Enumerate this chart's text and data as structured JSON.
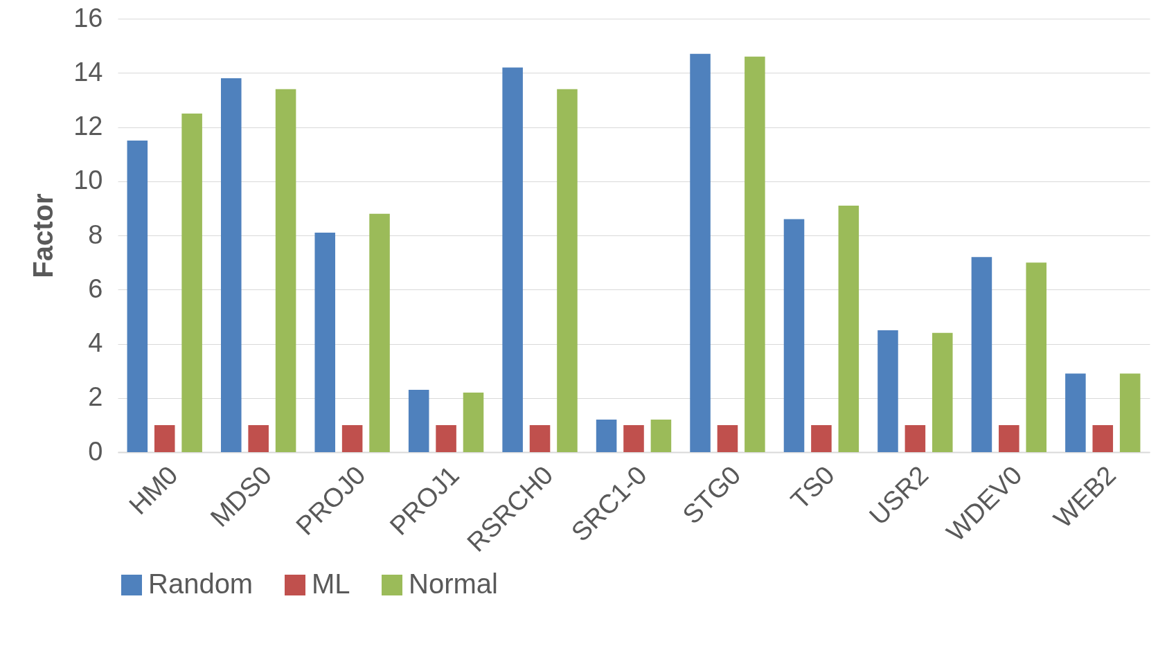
{
  "chart_data": {
    "type": "bar",
    "ylabel": "Factor",
    "categories": [
      "HM0",
      "MDS0",
      "PROJ0",
      "PROJ1",
      "RSRCH0",
      "SRC1-0",
      "STG0",
      "TS0",
      "USR2",
      "WDEV0",
      "WEB2"
    ],
    "series": [
      {
        "name": "Random",
        "color": "#4f81bd",
        "values": [
          11.5,
          13.8,
          8.1,
          2.3,
          14.2,
          1.2,
          14.7,
          8.6,
          4.5,
          7.2,
          2.9
        ]
      },
      {
        "name": "ML",
        "color": "#c0504d",
        "values": [
          1,
          1,
          1,
          1,
          1,
          1,
          1,
          1,
          1,
          1,
          1
        ]
      },
      {
        "name": "Normal",
        "color": "#9bbb59",
        "values": [
          12.5,
          13.4,
          8.8,
          2.2,
          13.4,
          1.2,
          14.6,
          9.1,
          4.4,
          7.0,
          2.9
        ]
      }
    ],
    "ylim": [
      0,
      16
    ],
    "yticks": [
      0,
      2,
      4,
      6,
      8,
      10,
      12,
      14,
      16
    ],
    "grid": "y",
    "legend": "bottom"
  }
}
